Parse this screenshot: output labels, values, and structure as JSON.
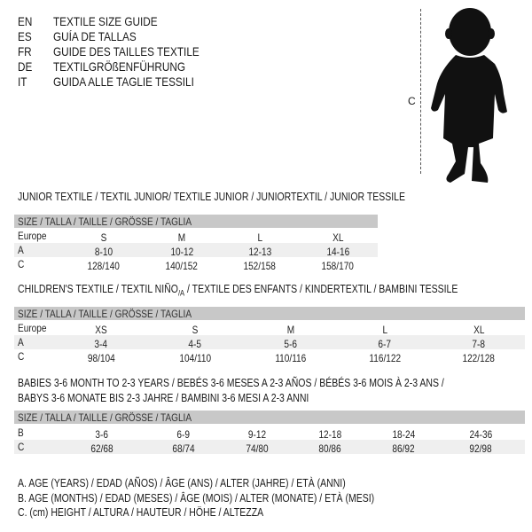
{
  "header": {
    "languages": [
      {
        "code": "EN",
        "title": "TEXTILE SIZE GUIDE"
      },
      {
        "code": "ES",
        "title": "GUÍA DE TALLAS"
      },
      {
        "code": "FR",
        "title": "GUIDE DES TAILLES TEXTILE"
      },
      {
        "code": "DE",
        "title": "TEXTILGRÖßENFÜHRUNG"
      },
      {
        "code": "IT",
        "title": "GUIDA ALLE TAGLIE TESSILI"
      }
    ],
    "figure_label": "C"
  },
  "junior": {
    "title": "JUNIOR TEXTILE / TEXTIL JUNIOR/ TEXTILE JUNIOR / JUNIORTEXTIL / JUNIOR TESSILE",
    "size_header": "SIZE / TALLA / TAILLE / GRÖSSE / TAGLIA",
    "rows": [
      {
        "label": "Europe",
        "values": [
          "S",
          "M",
          "L",
          "XL"
        ]
      },
      {
        "label": "A",
        "values": [
          "8-10",
          "10-12",
          "12-13",
          "14-16"
        ]
      },
      {
        "label": "C",
        "values": [
          "128/140",
          "140/152",
          "152/158",
          "158/170"
        ]
      }
    ]
  },
  "children": {
    "title_a": "CHILDREN'S TEXTILE / TEXTIL NIÑO",
    "title_sub": "/A",
    "title_b": " / TEXTILE DES ENFANTS / KINDERTEXTIL / BAMBINI TESSILE",
    "size_header": "SIZE / TALLA / TAILLE / GRÖSSE / TAGLIA",
    "rows": [
      {
        "label": "Europe",
        "values": [
          "XS",
          "S",
          "M",
          "L",
          "XL"
        ]
      },
      {
        "label": "A",
        "values": [
          "3-4",
          "4-5",
          "5-6",
          "6-7",
          "7-8"
        ]
      },
      {
        "label": "C",
        "values": [
          "98/104",
          "104/110",
          "110/116",
          "116/122",
          "122/128"
        ]
      }
    ]
  },
  "babies": {
    "title_line1": "BABIES 3-6 MONTH TO 2-3 YEARS / BEBÉS 3-6 MESES A 2-3 AÑOS / BÉBÉS 3-6 MOIS À 2-3 ANS /",
    "title_line2": "BABYS 3-6 MONATE BIS 2-3 JAHRE / BAMBINI 3-6 MESI A 2-3 ANNI",
    "size_header": "SIZE / TALLA / TAILLE / GRÖSSE / TAGLIA",
    "rows": [
      {
        "label": "B",
        "values": [
          "3-6",
          "6-9",
          "9-12",
          "12-18",
          "18-24",
          "24-36"
        ]
      },
      {
        "label": "C",
        "values": [
          "62/68",
          "68/74",
          "74/80",
          "80/86",
          "86/92",
          "92/98"
        ]
      }
    ]
  },
  "legend": [
    "A. AGE (YEARS) / EDAD (AÑOS) / ÂGE (ANS) / ALTER (JAHRE) / ETÀ (ANNI)",
    "B. AGE (MONTHS) / EDAD (MESES) / ÂGE (MOIS) / ALTER (MONATE) / ETÀ (MESI)",
    "C. (cm) HEIGHT / ALTURA / HAUTEUR / HÖHE / ALTEZZA"
  ]
}
